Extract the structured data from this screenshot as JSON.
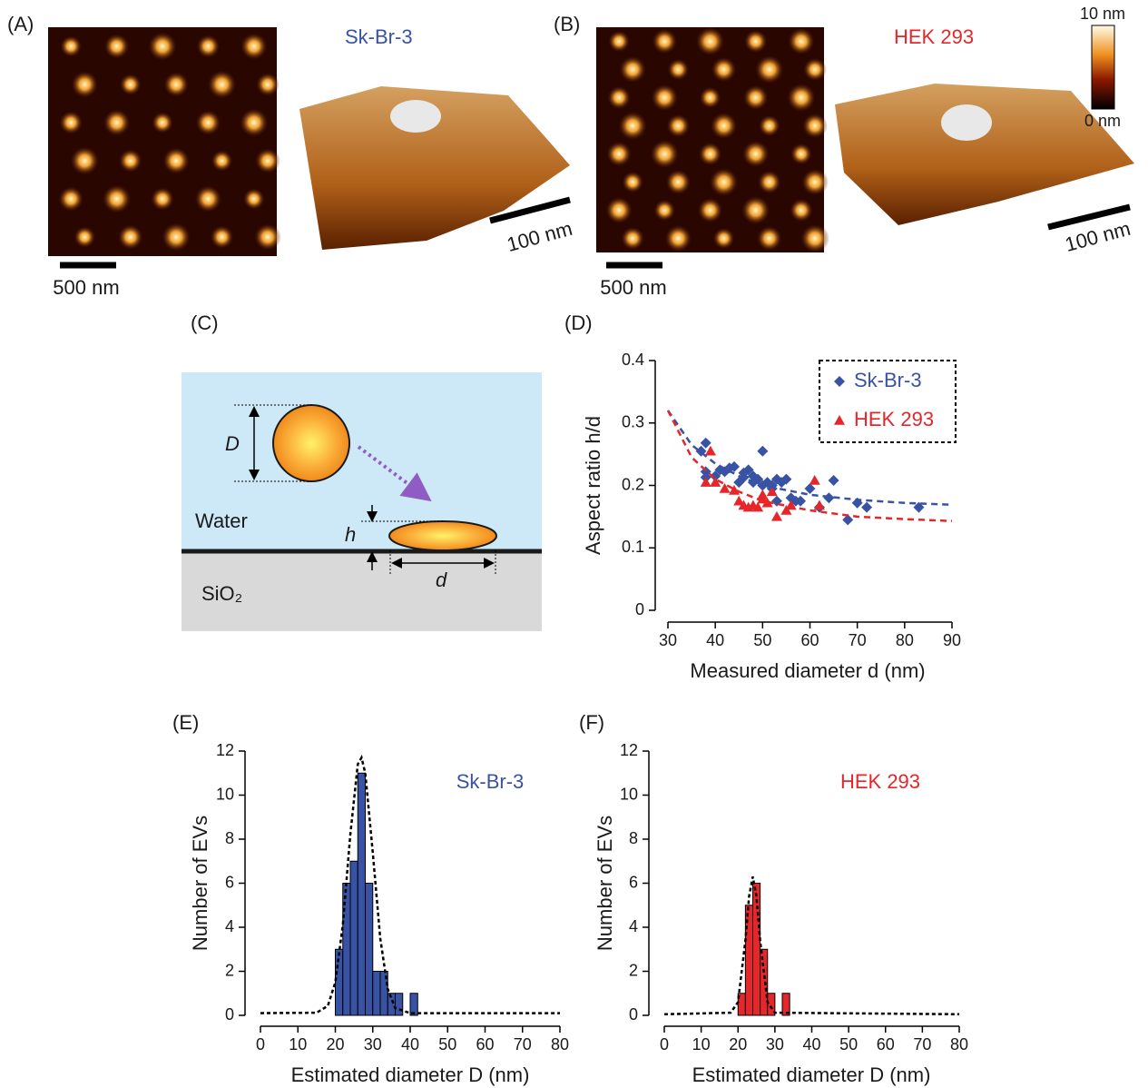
{
  "panels": {
    "a": {
      "label": "(A)",
      "cell": "Sk-Br-3",
      "scale_2d": "500 nm",
      "scale_3d": "100 nm"
    },
    "b": {
      "label": "(B)",
      "cell": "HEK 293",
      "scale_2d": "500 nm",
      "scale_3d": "100 nm",
      "colorbar_max": "10 nm",
      "colorbar_min": "0 nm"
    },
    "c": {
      "label": "(C)",
      "diameter": "D",
      "height": "h",
      "width": "d",
      "water": "Water",
      "substrate": "SiO₂"
    }
  },
  "chart_data": [
    {
      "type": "scatter",
      "panel_label": "(D)",
      "xlabel": "Measured diameter d (nm)",
      "ylabel": "Aspect ratio h/d",
      "xlim": [
        30,
        90
      ],
      "xticks": [
        30,
        40,
        50,
        60,
        70,
        80,
        90
      ],
      "ylim": [
        0,
        0.4
      ],
      "yticks": [
        0,
        0.1,
        0.2,
        0.3,
        0.4
      ],
      "legend": "upper right",
      "series": [
        {
          "name": "Sk-Br-3",
          "color": "#3953a4",
          "marker": "diamond",
          "x": [
            37,
            38,
            38,
            38,
            40,
            41,
            42,
            43,
            44,
            45,
            46,
            46,
            47,
            48,
            48,
            49,
            50,
            50,
            51,
            52,
            52,
            53,
            53,
            54,
            55,
            56,
            57,
            58,
            60,
            62,
            64,
            65,
            68,
            70,
            72,
            83
          ],
          "values": [
            0.255,
            0.268,
            0.222,
            0.213,
            0.215,
            0.225,
            0.222,
            0.228,
            0.23,
            0.205,
            0.22,
            0.213,
            0.225,
            0.215,
            0.205,
            0.21,
            0.255,
            0.2,
            0.205,
            0.195,
            0.2,
            0.175,
            0.21,
            0.205,
            0.21,
            0.18,
            0.175,
            0.175,
            0.195,
            0.165,
            0.18,
            0.208,
            0.145,
            0.172,
            0.165,
            0.165
          ]
        },
        {
          "name": "HEK 293",
          "color": "#e5262a",
          "marker": "triangle",
          "x": [
            39,
            38,
            40,
            42,
            44,
            45,
            46,
            47,
            48,
            49,
            50,
            50,
            51,
            52,
            53,
            55,
            56,
            61,
            62
          ],
          "values": [
            0.255,
            0.205,
            0.205,
            0.195,
            0.192,
            0.175,
            0.168,
            0.165,
            0.168,
            0.165,
            0.178,
            0.185,
            0.172,
            0.19,
            0.15,
            0.16,
            0.168,
            0.208,
            0.168
          ]
        }
      ],
      "fit_curves": [
        {
          "color": "#3953a4",
          "x": [
            30,
            35,
            40,
            45,
            50,
            60,
            70,
            80,
            90
          ],
          "y": [
            0.32,
            0.265,
            0.235,
            0.215,
            0.2,
            0.185,
            0.177,
            0.172,
            0.169
          ]
        },
        {
          "color": "#e5262a",
          "x": [
            30,
            35,
            40,
            45,
            50,
            60,
            70,
            80,
            90
          ],
          "y": [
            0.32,
            0.245,
            0.21,
            0.19,
            0.175,
            0.16,
            0.15,
            0.146,
            0.143
          ]
        }
      ]
    },
    {
      "type": "histogram",
      "panel_label": "(E)",
      "xlabel": "Estimated diameter D (nm)",
      "ylabel": "Number of EVs",
      "xlim": [
        0,
        80
      ],
      "xticks": [
        0,
        10,
        20,
        30,
        40,
        50,
        60,
        70,
        80
      ],
      "ylim": [
        0,
        12
      ],
      "yticks": [
        0,
        2,
        4,
        6,
        8,
        10,
        12
      ],
      "bins": [
        20,
        22,
        24,
        26,
        28,
        30,
        32,
        34,
        36,
        38,
        40,
        42
      ],
      "series": [
        {
          "name": "Sk-Br-3",
          "color": "#3953a4",
          "values": [
            3,
            6,
            7,
            11,
            6,
            2,
            2,
            1,
            1,
            0,
            1
          ]
        }
      ],
      "fit_curves": [
        {
          "color": "#000000",
          "x": [
            0,
            15,
            18,
            20,
            22,
            24,
            26,
            27,
            28,
            30,
            32,
            34,
            36,
            40,
            80
          ],
          "y": [
            0.1,
            0.12,
            0.43,
            1.5,
            4.1,
            8.2,
            11.4,
            11.7,
            11.0,
            7.4,
            3.5,
            1.2,
            0.33,
            0.1,
            0.1
          ]
        }
      ]
    },
    {
      "type": "histogram",
      "panel_label": "(F)",
      "xlabel": "Estimated diameter D (nm)",
      "ylabel": "Number of EVs",
      "xlim": [
        0,
        80
      ],
      "xticks": [
        0,
        10,
        20,
        30,
        40,
        50,
        60,
        70,
        80
      ],
      "ylim": [
        0,
        12
      ],
      "yticks": [
        0,
        2,
        4,
        6,
        8,
        10,
        12
      ],
      "bins": [
        20,
        22,
        24,
        26,
        28,
        30,
        32,
        34
      ],
      "series": [
        {
          "name": "HEK 293",
          "color": "#e5262a",
          "values": [
            1,
            5,
            6,
            3,
            1,
            0,
            1
          ]
        }
      ],
      "fit_curves": [
        {
          "color": "#000000",
          "x": [
            0,
            18,
            20,
            22,
            23,
            24,
            25,
            26,
            28,
            30,
            80
          ],
          "y": [
            0.05,
            0.12,
            0.6,
            3.4,
            5.4,
            6.3,
            5.4,
            3.4,
            0.6,
            0.12,
            0.05
          ]
        }
      ]
    }
  ]
}
